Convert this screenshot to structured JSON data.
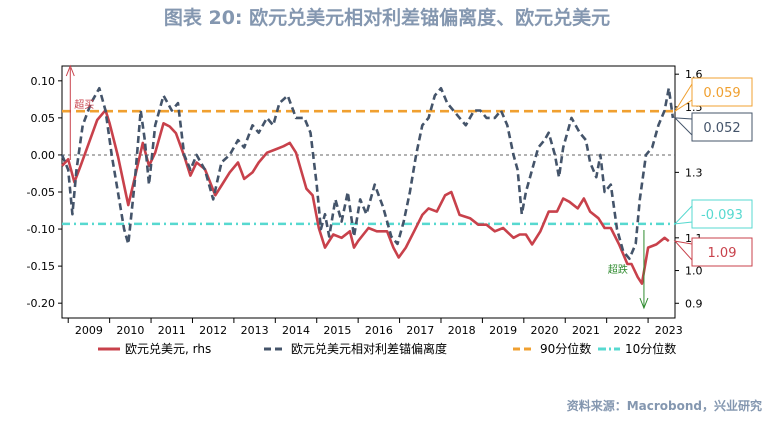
{
  "chart_data": {
    "type": "line",
    "title": "图表 20: 欧元兑美元相对利差锚偏离度、欧元兑美元",
    "source": "资料来源：Macrobond，兴业研究",
    "x_range": [
      2008.85,
      2023.65
    ],
    "x_ticks": [
      "2009",
      "2010",
      "2011",
      "2012",
      "2013",
      "2014",
      "2015",
      "2016",
      "2017",
      "2018",
      "2019",
      "2020",
      "2021",
      "2022",
      "2023"
    ],
    "y_left": {
      "range": [
        -0.22,
        0.12
      ],
      "ticks": [
        "0.10",
        "0.05",
        "0.00",
        "-0.05",
        "-0.10",
        "-0.15",
        "-0.20"
      ],
      "tick_values": [
        0.1,
        0.05,
        0.0,
        -0.05,
        -0.1,
        -0.15,
        -0.2
      ]
    },
    "y_right": {
      "range": [
        0.855,
        1.625
      ],
      "ticks": [
        "1.6",
        "1.5",
        "1.3",
        "1.1",
        "1.0",
        "0.9"
      ],
      "tick_values": [
        1.6,
        1.5,
        1.3,
        1.1,
        1.0,
        0.9
      ]
    },
    "series": [
      {
        "name": "欧元兑美元, rhs",
        "axis": "right",
        "color": "#c8414b",
        "style": "solid",
        "points": [
          [
            2008.85,
            1.32
          ],
          [
            2009.0,
            1.34
          ],
          [
            2009.15,
            1.27
          ],
          [
            2009.3,
            1.32
          ],
          [
            2009.5,
            1.39
          ],
          [
            2009.7,
            1.46
          ],
          [
            2009.9,
            1.49
          ],
          [
            2010.0,
            1.45
          ],
          [
            2010.2,
            1.35
          ],
          [
            2010.4,
            1.23
          ],
          [
            2010.45,
            1.2
          ],
          [
            2010.6,
            1.28
          ],
          [
            2010.8,
            1.39
          ],
          [
            2010.95,
            1.32
          ],
          [
            2011.1,
            1.36
          ],
          [
            2011.3,
            1.45
          ],
          [
            2011.45,
            1.44
          ],
          [
            2011.6,
            1.42
          ],
          [
            2011.8,
            1.35
          ],
          [
            2011.95,
            1.29
          ],
          [
            2012.1,
            1.33
          ],
          [
            2012.3,
            1.31
          ],
          [
            2012.55,
            1.23
          ],
          [
            2012.7,
            1.26
          ],
          [
            2012.9,
            1.3
          ],
          [
            2013.1,
            1.33
          ],
          [
            2013.25,
            1.28
          ],
          [
            2013.45,
            1.3
          ],
          [
            2013.6,
            1.33
          ],
          [
            2013.8,
            1.36
          ],
          [
            2014.0,
            1.37
          ],
          [
            2014.2,
            1.38
          ],
          [
            2014.35,
            1.39
          ],
          [
            2014.5,
            1.36
          ],
          [
            2014.75,
            1.25
          ],
          [
            2014.9,
            1.23
          ],
          [
            2015.05,
            1.13
          ],
          [
            2015.2,
            1.07
          ],
          [
            2015.4,
            1.11
          ],
          [
            2015.6,
            1.1
          ],
          [
            2015.8,
            1.12
          ],
          [
            2015.9,
            1.07
          ],
          [
            2016.0,
            1.09
          ],
          [
            2016.25,
            1.13
          ],
          [
            2016.45,
            1.12
          ],
          [
            2016.7,
            1.12
          ],
          [
            2016.85,
            1.07
          ],
          [
            2016.98,
            1.04
          ],
          [
            2017.15,
            1.07
          ],
          [
            2017.35,
            1.12
          ],
          [
            2017.55,
            1.17
          ],
          [
            2017.7,
            1.19
          ],
          [
            2017.9,
            1.18
          ],
          [
            2018.1,
            1.23
          ],
          [
            2018.25,
            1.24
          ],
          [
            2018.45,
            1.17
          ],
          [
            2018.7,
            1.16
          ],
          [
            2018.9,
            1.14
          ],
          [
            2019.1,
            1.14
          ],
          [
            2019.3,
            1.12
          ],
          [
            2019.5,
            1.13
          ],
          [
            2019.75,
            1.1
          ],
          [
            2019.9,
            1.11
          ],
          [
            2020.05,
            1.11
          ],
          [
            2020.2,
            1.08
          ],
          [
            2020.4,
            1.12
          ],
          [
            2020.6,
            1.18
          ],
          [
            2020.8,
            1.18
          ],
          [
            2020.95,
            1.22
          ],
          [
            2021.1,
            1.21
          ],
          [
            2021.3,
            1.19
          ],
          [
            2021.45,
            1.22
          ],
          [
            2021.6,
            1.18
          ],
          [
            2021.8,
            1.16
          ],
          [
            2021.95,
            1.13
          ],
          [
            2022.1,
            1.13
          ],
          [
            2022.3,
            1.08
          ],
          [
            2022.5,
            1.02
          ],
          [
            2022.6,
            1.02
          ],
          [
            2022.75,
            0.98
          ],
          [
            2022.85,
            0.96
          ],
          [
            2023.0,
            1.07
          ],
          [
            2023.2,
            1.08
          ],
          [
            2023.4,
            1.1
          ],
          [
            2023.5,
            1.09
          ]
        ]
      },
      {
        "name": "欧元兑美元相对利差锚偏离度",
        "axis": "left",
        "color": "#44546a",
        "style": "dashed",
        "points": [
          [
            2008.85,
            0.0
          ],
          [
            2009.0,
            -0.02
          ],
          [
            2009.1,
            -0.08
          ],
          [
            2009.2,
            -0.02
          ],
          [
            2009.35,
            0.04
          ],
          [
            2009.55,
            0.07
          ],
          [
            2009.75,
            0.09
          ],
          [
            2009.9,
            0.06
          ],
          [
            2010.05,
            0.0
          ],
          [
            2010.2,
            -0.05
          ],
          [
            2010.35,
            -0.1
          ],
          [
            2010.45,
            -0.12
          ],
          [
            2010.6,
            -0.04
          ],
          [
            2010.75,
            0.06
          ],
          [
            2010.85,
            0.02
          ],
          [
            2010.95,
            -0.04
          ],
          [
            2011.1,
            0.04
          ],
          [
            2011.3,
            0.08
          ],
          [
            2011.5,
            0.06
          ],
          [
            2011.65,
            0.07
          ],
          [
            2011.8,
            0.0
          ],
          [
            2011.95,
            -0.02
          ],
          [
            2012.1,
            0.0
          ],
          [
            2012.3,
            -0.02
          ],
          [
            2012.5,
            -0.06
          ],
          [
            2012.7,
            -0.01
          ],
          [
            2012.9,
            0.0
          ],
          [
            2013.1,
            0.02
          ],
          [
            2013.25,
            0.01
          ],
          [
            2013.45,
            0.04
          ],
          [
            2013.6,
            0.03
          ],
          [
            2013.8,
            0.05
          ],
          [
            2013.95,
            0.04
          ],
          [
            2014.1,
            0.07
          ],
          [
            2014.3,
            0.08
          ],
          [
            2014.5,
            0.05
          ],
          [
            2014.7,
            0.05
          ],
          [
            2014.85,
            0.03
          ],
          [
            2015.0,
            -0.04
          ],
          [
            2015.1,
            -0.1
          ],
          [
            2015.2,
            -0.08
          ],
          [
            2015.3,
            -0.11
          ],
          [
            2015.45,
            -0.06
          ],
          [
            2015.6,
            -0.09
          ],
          [
            2015.75,
            -0.05
          ],
          [
            2015.9,
            -0.11
          ],
          [
            2016.05,
            -0.06
          ],
          [
            2016.2,
            -0.08
          ],
          [
            2016.4,
            -0.04
          ],
          [
            2016.6,
            -0.07
          ],
          [
            2016.8,
            -0.11
          ],
          [
            2016.95,
            -0.12
          ],
          [
            2017.1,
            -0.09
          ],
          [
            2017.25,
            -0.05
          ],
          [
            2017.4,
            0.0
          ],
          [
            2017.55,
            0.04
          ],
          [
            2017.7,
            0.05
          ],
          [
            2017.85,
            0.08
          ],
          [
            2018.0,
            0.09
          ],
          [
            2018.15,
            0.07
          ],
          [
            2018.3,
            0.06
          ],
          [
            2018.45,
            0.05
          ],
          [
            2018.6,
            0.04
          ],
          [
            2018.8,
            0.06
          ],
          [
            2018.95,
            0.06
          ],
          [
            2019.1,
            0.05
          ],
          [
            2019.3,
            0.05
          ],
          [
            2019.45,
            0.06
          ],
          [
            2019.6,
            0.04
          ],
          [
            2019.75,
            0.0
          ],
          [
            2019.85,
            -0.02
          ],
          [
            2019.95,
            -0.08
          ],
          [
            2020.05,
            -0.05
          ],
          [
            2020.2,
            -0.02
          ],
          [
            2020.35,
            0.01
          ],
          [
            2020.5,
            0.02
          ],
          [
            2020.6,
            0.03
          ],
          [
            2020.75,
            0.0
          ],
          [
            2020.85,
            -0.03
          ],
          [
            2020.95,
            0.01
          ],
          [
            2021.15,
            0.05
          ],
          [
            2021.35,
            0.03
          ],
          [
            2021.5,
            0.02
          ],
          [
            2021.6,
            -0.01
          ],
          [
            2021.75,
            -0.03
          ],
          [
            2021.85,
            0.0
          ],
          [
            2021.95,
            -0.05
          ],
          [
            2022.1,
            -0.04
          ],
          [
            2022.25,
            -0.1
          ],
          [
            2022.4,
            -0.13
          ],
          [
            2022.55,
            -0.14
          ],
          [
            2022.7,
            -0.12
          ],
          [
            2022.8,
            -0.06
          ],
          [
            2022.95,
            0.0
          ],
          [
            2023.1,
            0.01
          ],
          [
            2023.25,
            0.04
          ],
          [
            2023.4,
            0.06
          ],
          [
            2023.5,
            0.09
          ],
          [
            2023.6,
            0.05
          ]
        ]
      },
      {
        "name": "90分位数",
        "axis": "left",
        "color": "#f0a030",
        "style": "dashed-thick",
        "value": 0.059
      },
      {
        "name": "10分位数",
        "axis": "left",
        "color": "#57d9d0",
        "style": "dashdot",
        "value": -0.093
      }
    ],
    "zero_line": 0.0,
    "callouts": [
      {
        "label": "0.059",
        "color": "#f0a030"
      },
      {
        "label": "0.052",
        "color": "#44546a"
      },
      {
        "label": "-0.093",
        "color": "#57d9d0"
      },
      {
        "label": "1.09",
        "color": "#c8414b"
      }
    ],
    "annotations": [
      {
        "text": "超买",
        "color": "#c8414b",
        "arrow": "up",
        "at_x": 2009.05
      },
      {
        "text": "超跌",
        "color": "#2e8b2e",
        "arrow": "down",
        "at_x": 2022.9
      }
    ],
    "legend": [
      {
        "label": "欧元兑美元, rhs",
        "color": "#c8414b",
        "style": "solid"
      },
      {
        "label": "欧元兑美元相对利差锚偏离度",
        "color": "#44546a",
        "style": "dashed"
      },
      {
        "label": "90分位数",
        "color": "#f0a030",
        "style": "dashed"
      },
      {
        "label": "10分位数",
        "color": "#57d9d0",
        "style": "dashdot"
      }
    ]
  }
}
